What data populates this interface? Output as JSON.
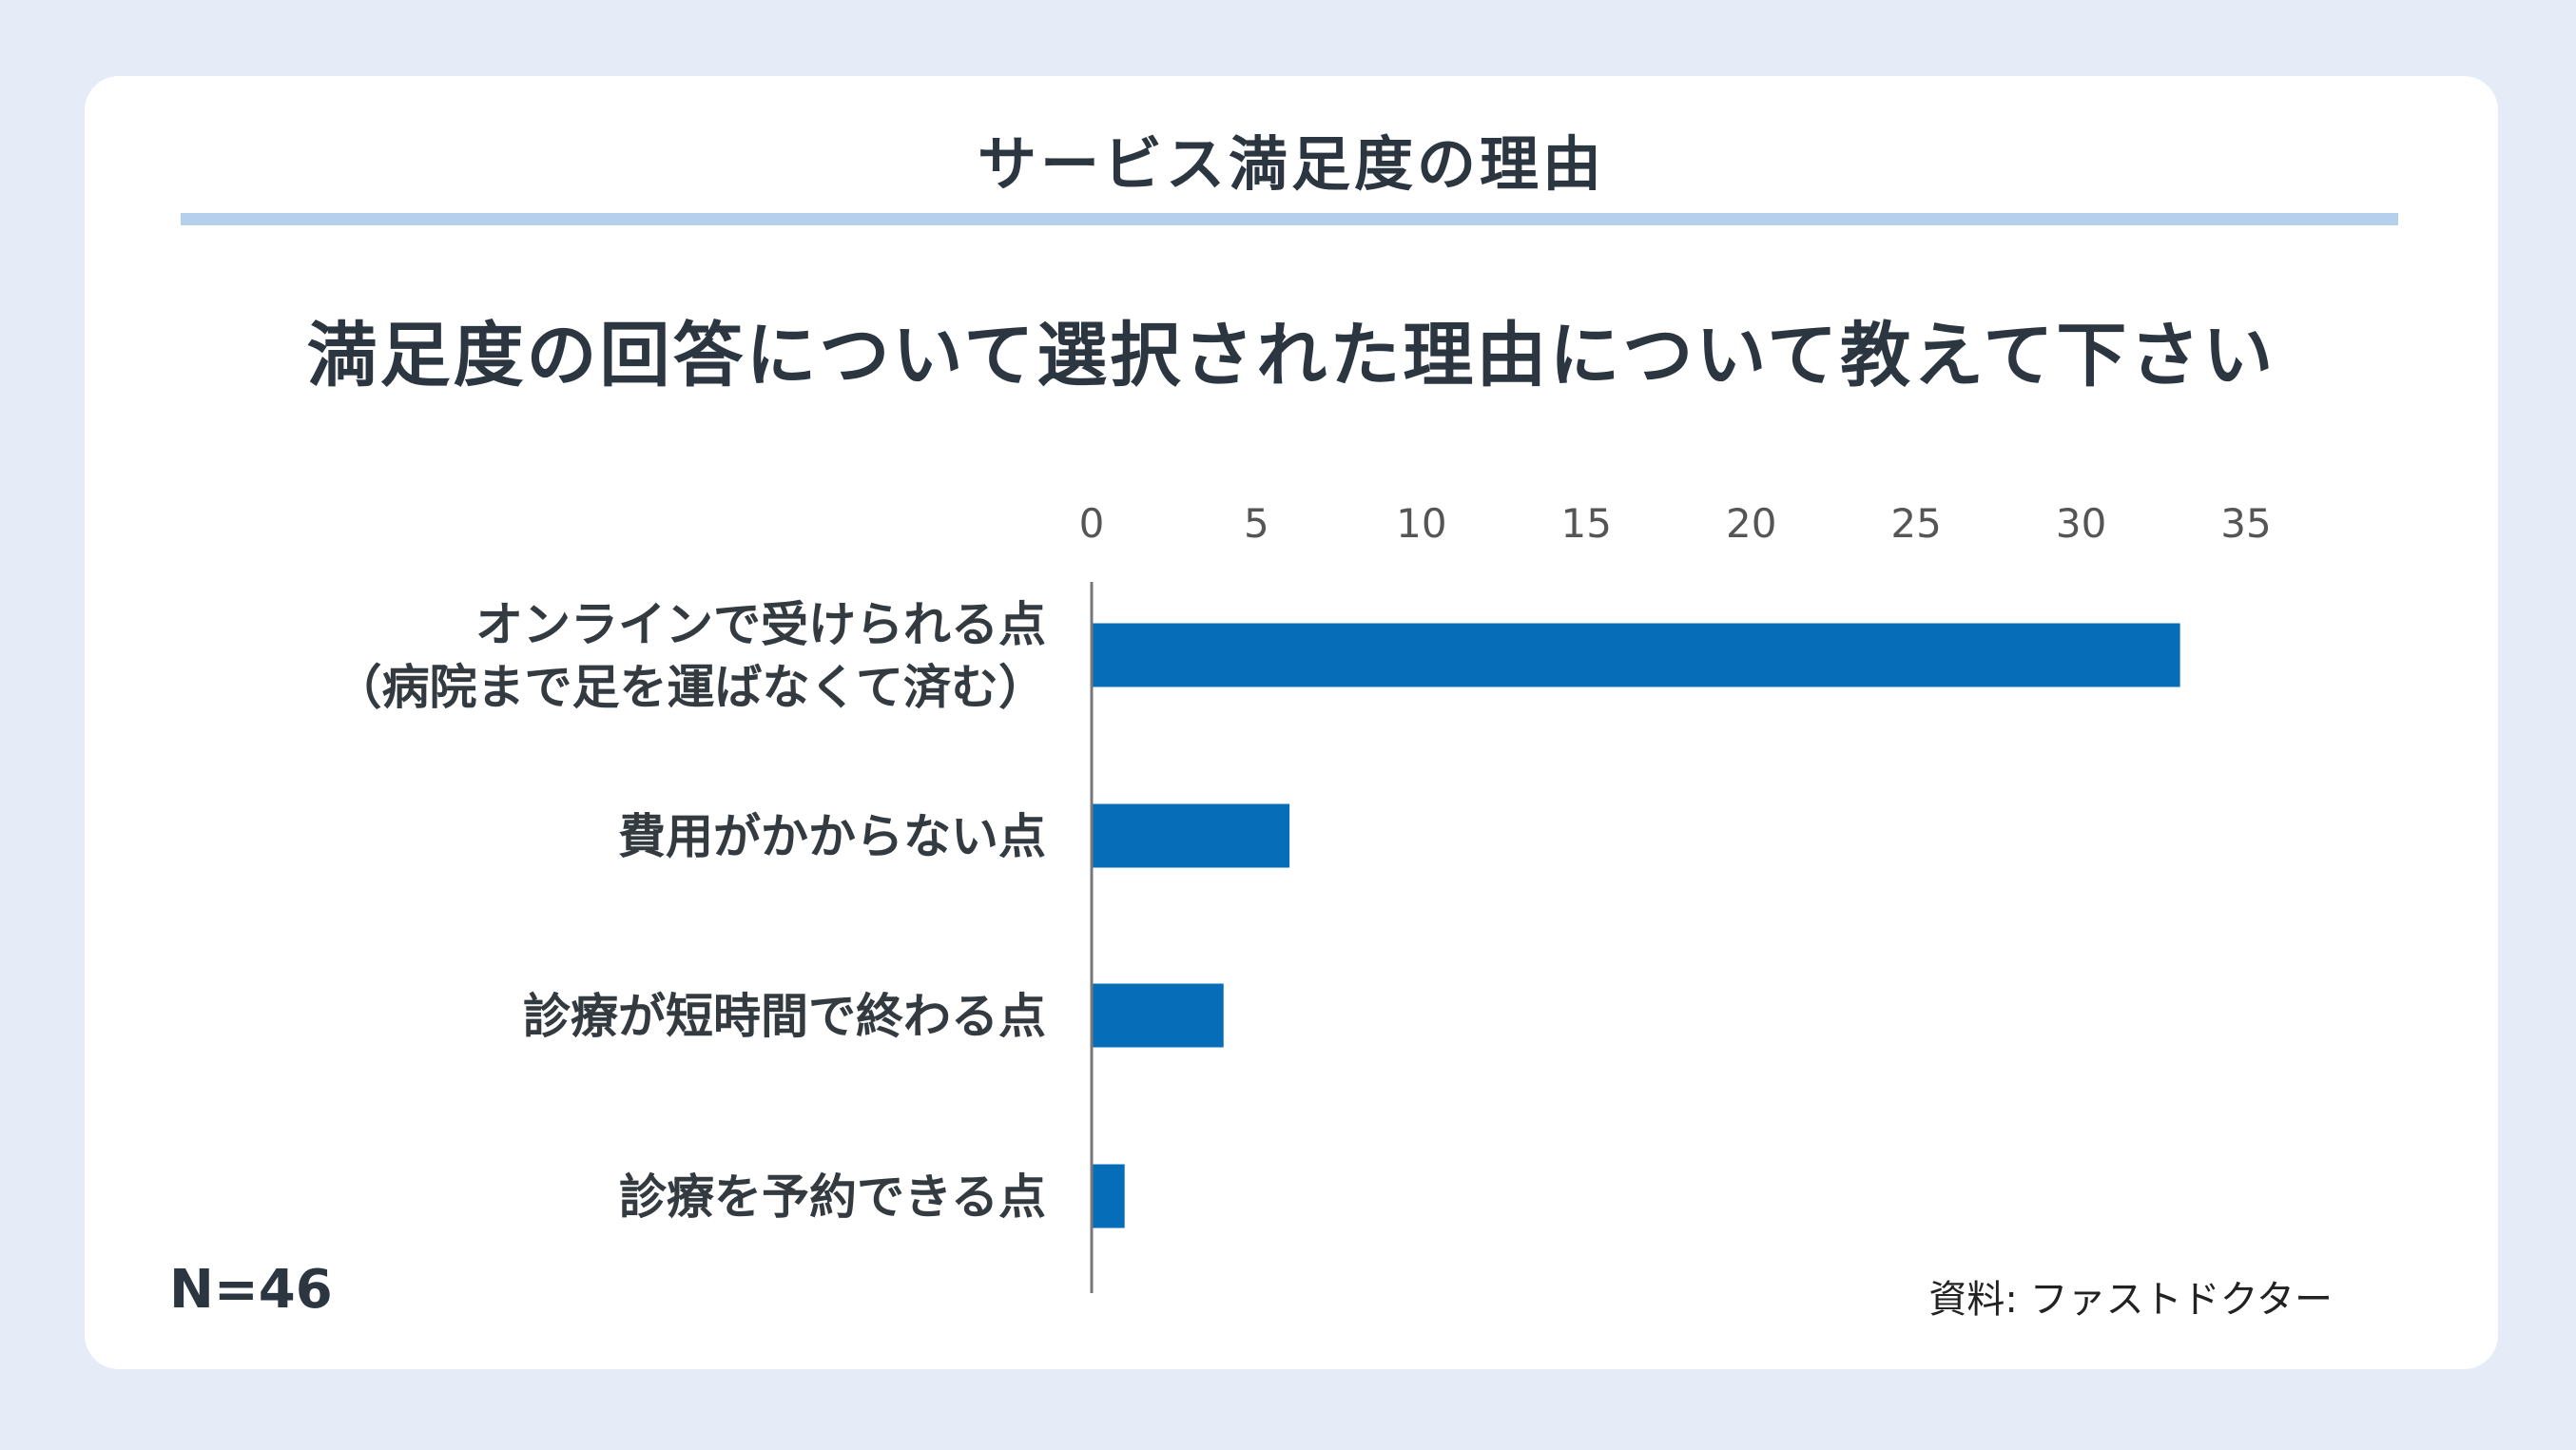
{
  "header": {
    "title": "サービス満足度の理由"
  },
  "question": "満足度の回答について選択された理由について教えて下さい",
  "footer": {
    "n": "N=46",
    "source": "資料: ファストドクター"
  },
  "colors": {
    "bar": "#066db8",
    "axis": "#777777",
    "tick_text": "#555555",
    "label_text": "#333a40"
  },
  "chart_data": {
    "type": "bar",
    "orientation": "horizontal",
    "categories": [
      [
        "オンラインで受けられる点",
        "（病院まで足を運ばなくて済む）"
      ],
      [
        "費用がかからない点"
      ],
      [
        "診療が短時間で終わる点"
      ],
      [
        "診療を予約できる点"
      ]
    ],
    "values": [
      33,
      6,
      4,
      1
    ],
    "xlim": [
      0,
      35
    ],
    "xticks": [
      0,
      5,
      10,
      15,
      20,
      25,
      30,
      35
    ],
    "xaxis_position": "top",
    "grid": false,
    "legend": "none"
  }
}
